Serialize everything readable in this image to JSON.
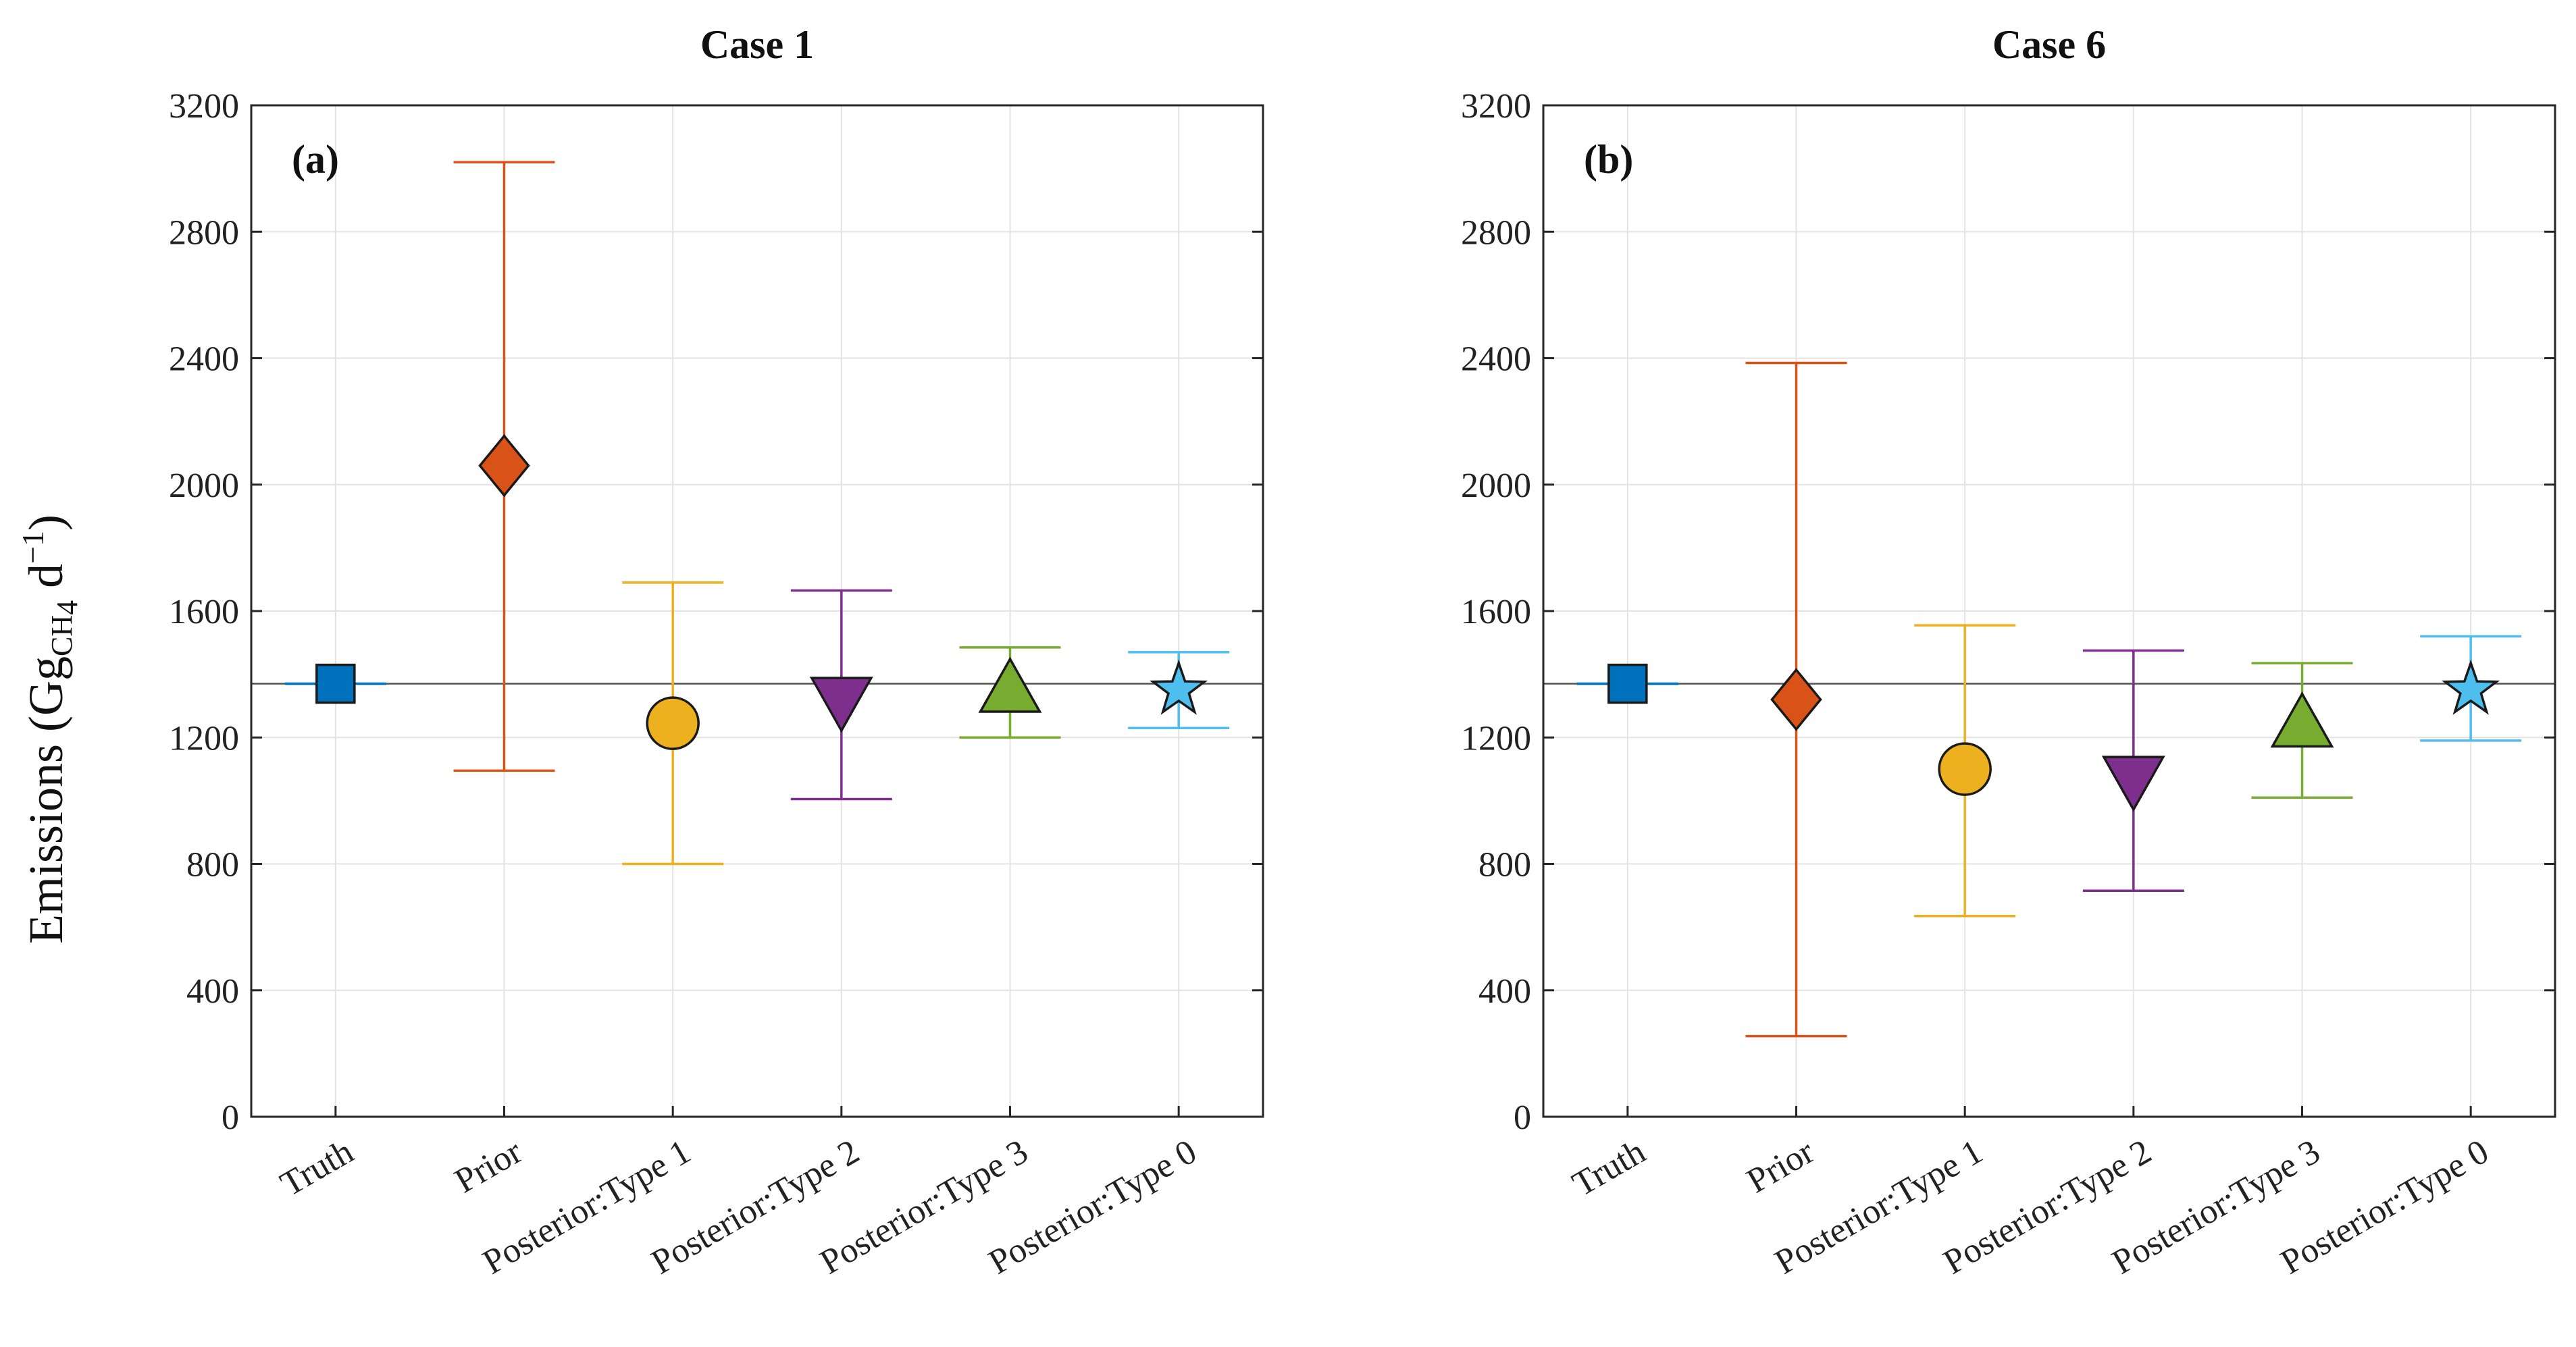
{
  "ylabel": {
    "main": "Emissions (Gg",
    "sub": "CH",
    "subsub": "4",
    "unit": " d",
    "sup": "−1",
    "close": ")"
  },
  "chart_data": [
    {
      "type": "errorbar",
      "title": "Case 1",
      "panel_label": "(a)",
      "categories": [
        "Truth",
        "Prior",
        "Posterior:Type 1",
        "Posterior:Type 2",
        "Posterior:Type 3",
        "Posterior:Type 0"
      ],
      "values": [
        1370,
        2060,
        1245,
        1320,
        1350,
        1350
      ],
      "lower": [
        1370,
        1095,
        800,
        1005,
        1200,
        1230
      ],
      "upper": [
        1370,
        3020,
        1690,
        1665,
        1485,
        1470
      ],
      "markers": [
        "square",
        "diamond",
        "circle",
        "triangle-down",
        "triangle-up",
        "star"
      ],
      "colors": [
        "#0072BD",
        "#D95319",
        "#EDB120",
        "#7E2F8E",
        "#77AC30",
        "#4DBEEE"
      ],
      "reference_line": 1370,
      "ylim": [
        0,
        3200
      ],
      "yticks": [
        0,
        400,
        800,
        1200,
        1600,
        2000,
        2400,
        2800,
        3200
      ],
      "grid": true
    },
    {
      "type": "errorbar",
      "title": "Case 6",
      "panel_label": "(b)",
      "categories": [
        "Truth",
        "Prior",
        "Posterior:Type 1",
        "Posterior:Type 2",
        "Posterior:Type 3",
        "Posterior:Type 0"
      ],
      "values": [
        1370,
        1320,
        1100,
        1070,
        1240,
        1350
      ],
      "lower": [
        1370,
        255,
        635,
        715,
        1010,
        1190
      ],
      "upper": [
        1370,
        2385,
        1555,
        1475,
        1435,
        1520
      ],
      "markers": [
        "square",
        "diamond",
        "circle",
        "triangle-down",
        "triangle-up",
        "star"
      ],
      "colors": [
        "#0072BD",
        "#D95319",
        "#EDB120",
        "#7E2F8E",
        "#77AC30",
        "#4DBEEE"
      ],
      "reference_line": 1370,
      "ylim": [
        0,
        3200
      ],
      "yticks": [
        0,
        400,
        800,
        1200,
        1600,
        2000,
        2400,
        2800,
        3200
      ],
      "grid": true
    }
  ]
}
